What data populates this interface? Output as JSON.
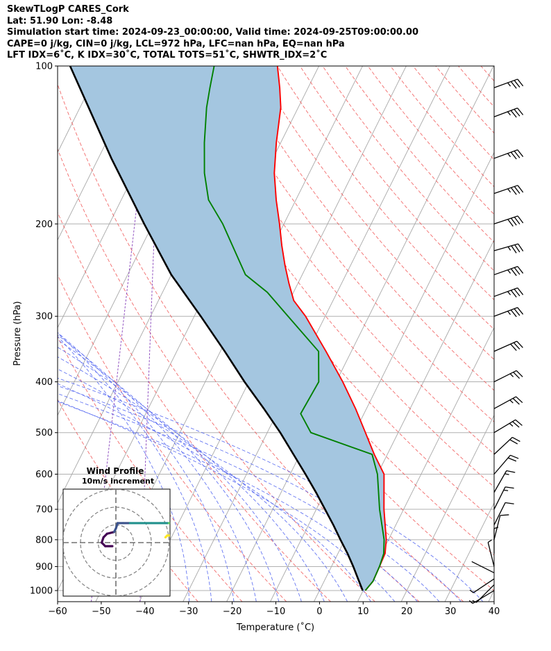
{
  "header": {
    "title": "SkewTLogP CARES_Cork",
    "location": "Lat: 51.90   Lon: -8.48",
    "times": "Simulation start time: 2024-09-23_00:00:00, Valid time: 2024-09-25T09:00:00.00",
    "indices_1": "CAPE=0 j/kg, CIN=0 j/kg, LCL=972 hPa, LFC=nan hPa, EQ=nan hPa",
    "indices_2": "LFT IDX=6˚C, K IDX=30˚C, TOTAL TOTS=51˚C, SHWTR_IDX=2˚C"
  },
  "chart_data": {
    "type": "line",
    "subtype": "skew-t log-p",
    "xlabel": "Temperature (˚C)",
    "ylabel": "Pressure (hPa)",
    "xlim": [
      -60,
      40
    ],
    "ylim": [
      1050,
      100
    ],
    "x_ticks": [
      "−60",
      "−50",
      "−40",
      "−30",
      "−20",
      "−10",
      "0",
      "10",
      "20",
      "30",
      "40"
    ],
    "y_ticks": [
      "100",
      "200",
      "300",
      "400",
      "500",
      "600",
      "700",
      "800",
      "900",
      "1000"
    ],
    "grid": true,
    "series": [
      {
        "kind": "temperature",
        "color": "#ff0000",
        "points": [
          [
            1000,
            10.5
          ],
          [
            960,
            11.2
          ],
          [
            900,
            11.0
          ],
          [
            850,
            10.8
          ],
          [
            800,
            9.5
          ],
          [
            700,
            5.5
          ],
          [
            600,
            1.5
          ],
          [
            550,
            -3.0
          ],
          [
            500,
            -7.5
          ],
          [
            450,
            -12.5
          ],
          [
            400,
            -18.5
          ],
          [
            350,
            -25.8
          ],
          [
            300,
            -34.5
          ],
          [
            280,
            -39.0
          ],
          [
            260,
            -42.0
          ],
          [
            240,
            -45.0
          ],
          [
            220,
            -48.0
          ],
          [
            200,
            -51.0
          ],
          [
            180,
            -54.5
          ],
          [
            160,
            -58.0
          ],
          [
            140,
            -61.0
          ],
          [
            120,
            -64.0
          ],
          [
            110,
            -66.5
          ],
          [
            100,
            -69.5
          ]
        ]
      },
      {
        "kind": "dewpoint",
        "color": "#008000",
        "points": [
          [
            1000,
            10.5
          ],
          [
            960,
            11.2
          ],
          [
            900,
            11.0
          ],
          [
            850,
            10.5
          ],
          [
            800,
            9.0
          ],
          [
            700,
            4.5
          ],
          [
            600,
            0.0
          ],
          [
            550,
            -3.5
          ],
          [
            500,
            -20.0
          ],
          [
            460,
            -24.5
          ],
          [
            400,
            -24.0
          ],
          [
            350,
            -27.5
          ],
          [
            300,
            -38.5
          ],
          [
            270,
            -46.0
          ],
          [
            250,
            -53.0
          ],
          [
            200,
            -64.0
          ],
          [
            180,
            -70.0
          ],
          [
            160,
            -74.0
          ],
          [
            140,
            -77.5
          ],
          [
            120,
            -81.0
          ],
          [
            110,
            -82.5
          ],
          [
            100,
            -84.0
          ]
        ]
      },
      {
        "kind": "parcel",
        "color": "#000000",
        "points": [
          [
            1000,
            9.9
          ],
          [
            950,
            7.5
          ],
          [
            900,
            5.0
          ],
          [
            850,
            2.2
          ],
          [
            800,
            -1.0
          ],
          [
            750,
            -4.3
          ],
          [
            700,
            -8.0
          ],
          [
            650,
            -12.0
          ],
          [
            600,
            -16.5
          ],
          [
            550,
            -21.5
          ],
          [
            500,
            -27.0
          ],
          [
            450,
            -33.5
          ],
          [
            400,
            -41.0
          ],
          [
            350,
            -49.0
          ],
          [
            300,
            -58.5
          ],
          [
            250,
            -70.0
          ],
          [
            200,
            -82.0
          ],
          [
            150,
            -97.0
          ],
          [
            100,
            -117.0
          ]
        ]
      }
    ],
    "wind_barbs": [
      {
        "p": 1000,
        "u": 5,
        "v": -3
      },
      {
        "p": 975,
        "u": 4,
        "v": -4
      },
      {
        "p": 950,
        "u": 3,
        "v": -2
      },
      {
        "p": 925,
        "u": 2,
        "v": 1
      },
      {
        "p": 900,
        "u": 1,
        "v": 4
      },
      {
        "p": 850,
        "u": 0,
        "v": 6
      },
      {
        "p": 800,
        "u": -2,
        "v": 8
      },
      {
        "p": 750,
        "u": -5,
        "v": 10
      },
      {
        "p": 700,
        "u": -6,
        "v": 12
      },
      {
        "p": 650,
        "u": -8,
        "v": 14
      },
      {
        "p": 600,
        "u": -12,
        "v": 14
      },
      {
        "p": 550,
        "u": -15,
        "v": 14
      },
      {
        "p": 500,
        "u": -20,
        "v": 12
      },
      {
        "p": 450,
        "u": -22,
        "v": 12
      },
      {
        "p": 400,
        "u": -24,
        "v": 12
      },
      {
        "p": 350,
        "u": -27,
        "v": 12
      },
      {
        "p": 300,
        "u": -32,
        "v": 12
      },
      {
        "p": 275,
        "u": -33,
        "v": 12
      },
      {
        "p": 250,
        "u": -34,
        "v": 12
      },
      {
        "p": 225,
        "u": -35,
        "v": 10
      },
      {
        "p": 200,
        "u": -36,
        "v": 12
      },
      {
        "p": 175,
        "u": -35,
        "v": 12
      },
      {
        "p": 150,
        "u": -33,
        "v": 12
      },
      {
        "p": 125,
        "u": -32,
        "v": 12
      },
      {
        "p": 110,
        "u": -33,
        "v": 12
      }
    ],
    "hodograph": {
      "title": "Wind Profile",
      "subtitle": "10m/s increment",
      "rings": [
        10,
        20,
        30
      ],
      "points": [
        [
          -2,
          -2
        ],
        [
          -6,
          -2
        ],
        [
          -8,
          0
        ],
        [
          -7,
          3
        ],
        [
          -5,
          5
        ],
        [
          -1,
          6
        ],
        [
          0,
          8
        ],
        [
          1,
          11
        ],
        [
          4,
          11
        ],
        [
          8,
          11
        ],
        [
          14,
          11
        ],
        [
          20,
          11
        ],
        [
          25,
          11
        ],
        [
          30,
          11
        ],
        [
          36,
          11
        ],
        [
          40,
          10
        ],
        [
          42,
          8
        ],
        [
          40,
          6
        ],
        [
          37,
          5
        ],
        [
          34,
          4
        ],
        [
          31,
          4
        ],
        [
          29,
          4
        ],
        [
          28,
          3
        ]
      ],
      "colormap": [
        "#440154",
        "#3b528b",
        "#21918c",
        "#5ec962",
        "#fde725"
      ]
    },
    "fill_color": "#a4c6e0"
  }
}
